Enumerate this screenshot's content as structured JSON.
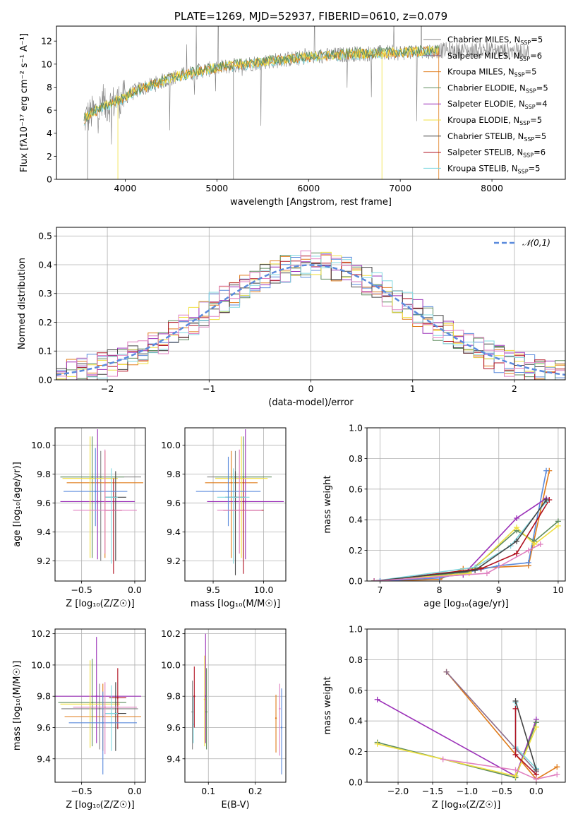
{
  "colors": {
    "Chabrier MILES": "#808080",
    "Salpeter MILES": "#8c6d8c",
    "Kroupa MILES": "#e07b1a",
    "Chabrier ELODIE": "#5e8c5e",
    "Salpeter ELODIE": "#9b30b8",
    "Kroupa ELODIE": "#f0e040",
    "Chabrier STELIB": "#444444",
    "Salpeter STELIB": "#b01020",
    "Kroupa STELIB": "#80d8e0",
    "extra_blue": "#5a8adc",
    "extra_pink": "#e080c0",
    "extra_green": "#60b060",
    "extra_lime": "#c8e860",
    "gauss": "#5a8adc"
  },
  "chart_data": [
    {
      "id": "spectrum",
      "type": "line",
      "title": "PLATE=1269, MJD=52937, FIBERID=0610, z=0.079",
      "xlabel": "wavelength [Angstrom, rest frame]",
      "ylabel": "Flux [fλ10⁻¹⁷ erg cm⁻² s⁻¹ A⁻¹]",
      "xlim": [
        3250,
        8800
      ],
      "ylim": [
        0,
        13.3
      ],
      "xticks": [
        "4000",
        "5000",
        "6000",
        "7000",
        "8000"
      ],
      "yticks": [
        "0",
        "2",
        "4",
        "6",
        "8",
        "10",
        "12"
      ],
      "grid": false,
      "legend_position": "upper-right",
      "legend": [
        {
          "name": "Chabrier MILES",
          "nssp": "5"
        },
        {
          "name": "Salpeter MILES",
          "nssp": "6"
        },
        {
          "name": "Kroupa MILES",
          "nssp": "5"
        },
        {
          "name": "Chabrier ELODIE",
          "nssp": "5"
        },
        {
          "name": "Salpeter ELODIE",
          "nssp": "4"
        },
        {
          "name": "Kroupa ELODIE",
          "nssp": "5"
        },
        {
          "name": "Chabrier STELIB",
          "nssp": "5"
        },
        {
          "name": "Salpeter STELIB",
          "nssp": "6"
        },
        {
          "name": "Kroupa STELIB",
          "nssp": "5"
        }
      ],
      "continuum": [
        [
          3550,
          5.2
        ],
        [
          3650,
          5.8
        ],
        [
          3750,
          6.2
        ],
        [
          3850,
          6.6
        ],
        [
          3950,
          6.9
        ],
        [
          4050,
          7.4
        ],
        [
          4150,
          7.8
        ],
        [
          4300,
          8.2
        ],
        [
          4500,
          8.8
        ],
        [
          4800,
          9.4
        ],
        [
          5100,
          9.8
        ],
        [
          5500,
          10.2
        ],
        [
          6000,
          10.6
        ],
        [
          6500,
          10.9
        ],
        [
          7000,
          11.0
        ],
        [
          7500,
          11.2
        ],
        [
          8000,
          11.2
        ],
        [
          8400,
          11.1
        ]
      ],
      "series_ranges": {
        "data": [
          3550,
          8400
        ],
        "model": [
          3550,
          7420
        ]
      }
    },
    {
      "id": "residuals",
      "type": "bar",
      "xlabel": "(data-model)/error",
      "ylabel": "Normed distribution",
      "xlim": [
        -2.5,
        2.5
      ],
      "ylim": [
        0,
        0.53
      ],
      "xticks": [
        "−2",
        "−1",
        "0",
        "1",
        "2"
      ],
      "yticks": [
        "0.0",
        "0.1",
        "0.2",
        "0.3",
        "0.4",
        "0.5"
      ],
      "grid": true,
      "legend_position": "upper-right",
      "gauss_label": "𝒩(0,1)",
      "bin_width": 0.1
    },
    {
      "id": "age_vs_Z",
      "type": "scatter",
      "xlabel": "Z [log₁₀(Z/Z☉)]",
      "ylabel": "age  [log₁₀(age/yr)]",
      "xlim": [
        -0.75,
        0.1
      ],
      "ylim": [
        9.06,
        10.12
      ],
      "xticks": [
        "−0.5",
        "0.0"
      ],
      "yticks": [
        "9.2",
        "9.4",
        "9.6",
        "9.8",
        "10.0"
      ],
      "grid": true,
      "points": [
        {
          "x": -0.32,
          "y": 9.78,
          "xerr": 0.38,
          "yerr": [
            0.58,
            0.18
          ],
          "c": "Chabrier MILES"
        },
        {
          "x": -0.28,
          "y": 9.74,
          "xerr": 0.36,
          "yerr": [
            0.52,
            0.22
          ],
          "c": "Kroupa MILES"
        },
        {
          "x": -0.4,
          "y": 9.78,
          "xerr": 0.3,
          "yerr": [
            0.56,
            0.28
          ],
          "c": "Chabrier ELODIE"
        },
        {
          "x": -0.35,
          "y": 9.61,
          "xerr": 0.35,
          "yerr": [
            0.4,
            0.5
          ],
          "c": "Salpeter ELODIE"
        },
        {
          "x": -0.42,
          "y": 9.77,
          "xerr": 0.26,
          "yerr": [
            0.55,
            0.29
          ],
          "c": "Kroupa ELODIE"
        },
        {
          "x": -0.18,
          "y": 9.64,
          "xerr": 0.1,
          "yerr": [
            0.44,
            0.18
          ],
          "c": "Chabrier STELIB"
        },
        {
          "x": -0.2,
          "y": 9.55,
          "xerr": 0.08,
          "yerr": [
            0.44,
            0.22
          ],
          "c": "Salpeter STELIB"
        },
        {
          "x": -0.22,
          "y": 9.64,
          "xerr": 0.06,
          "yerr": [
            0.46,
            0.2
          ],
          "c": "Kroupa STELIB"
        },
        {
          "x": -0.37,
          "y": 9.68,
          "xerr": 0.3,
          "yerr": [
            0.24,
            0.3
          ],
          "c": "extra_blue"
        },
        {
          "x": -0.28,
          "y": 9.55,
          "xerr": 0.3,
          "yerr": [
            0.3,
            0.42
          ],
          "c": "extra_pink"
        }
      ]
    },
    {
      "id": "age_vs_mass",
      "type": "scatter",
      "xlabel": "mass [log₁₀(M/M☉)]",
      "xlim": [
        9.22,
        10.22
      ],
      "ylim": [
        9.06,
        10.12
      ],
      "xticks": [
        "9.5",
        "10.0"
      ],
      "yticks": [
        "9.2",
        "9.4",
        "9.6",
        "9.8",
        "10.0"
      ],
      "grid": true,
      "points": [
        {
          "x": 9.72,
          "y": 9.78,
          "xerr": 0.28,
          "yerr": [
            0.58,
            0.18
          ],
          "c": "Chabrier MILES"
        },
        {
          "x": 9.68,
          "y": 9.74,
          "xerr": 0.26,
          "yerr": [
            0.52,
            0.22
          ],
          "c": "Kroupa MILES"
        },
        {
          "x": 9.8,
          "y": 9.78,
          "xerr": 0.28,
          "yerr": [
            0.56,
            0.28
          ],
          "c": "Chabrier ELODIE"
        },
        {
          "x": 9.82,
          "y": 9.61,
          "xerr": 0.38,
          "yerr": [
            0.4,
            0.5
          ],
          "c": "Salpeter ELODIE"
        },
        {
          "x": 9.78,
          "y": 9.77,
          "xerr": 0.26,
          "yerr": [
            0.55,
            0.29
          ],
          "c": "Kroupa ELODIE"
        },
        {
          "x": 9.72,
          "y": 9.64,
          "xerr": 0.1,
          "yerr": [
            0.54,
            0.18
          ],
          "c": "Chabrier STELIB"
        },
        {
          "x": 9.8,
          "y": 9.55,
          "xerr": 0.2,
          "yerr": [
            0.44,
            0.22
          ],
          "c": "Salpeter STELIB"
        },
        {
          "x": 9.7,
          "y": 9.64,
          "xerr": 0.16,
          "yerr": [
            0.46,
            0.2
          ],
          "c": "Kroupa STELIB"
        },
        {
          "x": 9.65,
          "y": 9.68,
          "xerr": 0.32,
          "yerr": [
            0.24,
            0.24
          ],
          "c": "extra_blue"
        },
        {
          "x": 9.76,
          "y": 9.55,
          "xerr": 0.22,
          "yerr": [
            0.3,
            0.42
          ],
          "c": "extra_pink"
        }
      ]
    },
    {
      "id": "mass_weight_vs_age",
      "type": "line",
      "xlabel": "age  [log₁₀(age/yr)]",
      "ylabel": "mass weight",
      "xlim": [
        6.78,
        10.12
      ],
      "ylim": [
        0,
        1.0
      ],
      "xticks": [
        "7",
        "8",
        "9",
        "10"
      ],
      "yticks": [
        "0.0",
        "0.2",
        "0.4",
        "0.6",
        "0.8",
        "1.0"
      ],
      "grid": true,
      "series": [
        {
          "c": "Kroupa MILES",
          "x": [
            6.9,
            8.0,
            8.4,
            9.5,
            9.85
          ],
          "y": [
            0.0,
            0.01,
            0.08,
            0.1,
            0.72
          ]
        },
        {
          "c": "extra_blue",
          "x": [
            7.0,
            8.0,
            9.0,
            9.5,
            9.8
          ],
          "y": [
            0.0,
            0.02,
            0.1,
            0.12,
            0.72
          ]
        },
        {
          "c": "Salpeter ELODIE",
          "x": [
            6.9,
            8.4,
            9.3,
            9.8
          ],
          "y": [
            0.0,
            0.04,
            0.41,
            0.54
          ]
        },
        {
          "c": "Chabrier ELODIE",
          "x": [
            6.9,
            8.5,
            9.3,
            9.6,
            10.0
          ],
          "y": [
            0.0,
            0.06,
            0.33,
            0.26,
            0.39
          ]
        },
        {
          "c": "Kroupa ELODIE",
          "x": [
            6.9,
            8.5,
            9.3,
            9.6,
            10.0
          ],
          "y": [
            0.0,
            0.05,
            0.35,
            0.24,
            0.36
          ]
        },
        {
          "c": "Salpeter STELIB",
          "x": [
            6.9,
            8.7,
            9.3,
            9.85
          ],
          "y": [
            0.0,
            0.08,
            0.18,
            0.53
          ]
        },
        {
          "c": "Kroupa STELIB",
          "x": [
            6.9,
            8.6,
            9.2,
            9.8
          ],
          "y": [
            0.0,
            0.09,
            0.23,
            0.52
          ]
        },
        {
          "c": "Chabrier STELIB",
          "x": [
            6.9,
            8.6,
            9.3,
            9.8
          ],
          "y": [
            0.0,
            0.07,
            0.26,
            0.53
          ]
        },
        {
          "c": "extra_pink",
          "x": [
            6.9,
            8.8,
            9.5,
            9.7
          ],
          "y": [
            0.0,
            0.05,
            0.2,
            0.24
          ]
        }
      ]
    },
    {
      "id": "mass_vs_Z",
      "type": "scatter",
      "xlabel": "Z [log₁₀(Z/Z☉)]",
      "ylabel": "mass [log₁₀(M/M☉)]",
      "xlim": [
        -0.75,
        0.1
      ],
      "ylim": [
        9.25,
        10.23
      ],
      "xticks": [
        "−0.5",
        "0.0"
      ],
      "yticks": [
        "9.4",
        "9.6",
        "9.8",
        "10.0",
        "10.2"
      ],
      "grid": true,
      "points": [
        {
          "x": -0.33,
          "y": 9.72,
          "xerr": 0.36,
          "yerr": [
            0.26,
            0.16
          ],
          "c": "Chabrier MILES"
        },
        {
          "x": -0.3,
          "y": 9.67,
          "xerr": 0.36,
          "yerr": [
            0.22,
            0.21
          ],
          "c": "Kroupa MILES"
        },
        {
          "x": -0.4,
          "y": 9.76,
          "xerr": 0.32,
          "yerr": [
            0.28,
            0.28
          ],
          "c": "Chabrier ELODIE"
        },
        {
          "x": -0.36,
          "y": 9.8,
          "xerr": 0.42,
          "yerr": [
            0.3,
            0.38
          ],
          "c": "Salpeter ELODIE"
        },
        {
          "x": -0.42,
          "y": 9.75,
          "xerr": 0.28,
          "yerr": [
            0.28,
            0.28
          ],
          "c": "Kroupa ELODIE"
        },
        {
          "x": -0.18,
          "y": 9.69,
          "xerr": 0.1,
          "yerr": [
            0.24,
            0.2
          ],
          "c": "Chabrier STELIB"
        },
        {
          "x": -0.16,
          "y": 9.79,
          "xerr": 0.08,
          "yerr": [
            0.2,
            0.19
          ],
          "c": "Salpeter STELIB"
        },
        {
          "x": -0.22,
          "y": 9.69,
          "xerr": 0.06,
          "yerr": [
            0.24,
            0.18
          ],
          "c": "Kroupa STELIB"
        },
        {
          "x": -0.3,
          "y": 9.63,
          "xerr": 0.32,
          "yerr": [
            0.33,
            0.2
          ],
          "c": "extra_blue"
        },
        {
          "x": -0.28,
          "y": 9.73,
          "xerr": 0.3,
          "yerr": [
            0.3,
            0.16
          ],
          "c": "extra_pink"
        }
      ]
    },
    {
      "id": "mass_vs_ebv",
      "type": "scatter",
      "xlabel": "E(B-V)",
      "xlim": [
        0.05,
        0.265
      ],
      "ylim": [
        9.25,
        10.23
      ],
      "xticks": [
        "0.1",
        "0.2"
      ],
      "yticks": [
        "9.4",
        "9.6",
        "9.8",
        "10.0",
        "10.2"
      ],
      "grid": true,
      "points": [
        {
          "x": 0.066,
          "y": 9.7,
          "c": "Chabrier MILES",
          "yerr": [
            0.24,
            0.2
          ]
        },
        {
          "x": 0.068,
          "y": 9.62,
          "c": "Kroupa STELIB",
          "yerr": [
            0.12,
            0.18
          ]
        },
        {
          "x": 0.07,
          "y": 9.8,
          "c": "Salpeter STELIB",
          "yerr": [
            0.2,
            0.19
          ]
        },
        {
          "x": 0.092,
          "y": 9.78,
          "c": "Kroupa ELODIE",
          "yerr": [
            0.3,
            0.28
          ]
        },
        {
          "x": 0.094,
          "y": 9.8,
          "c": "Salpeter ELODIE",
          "yerr": [
            0.3,
            0.4
          ]
        },
        {
          "x": 0.096,
          "y": 9.7,
          "c": "Chabrier ELODIE",
          "yerr": [
            0.24,
            0.28
          ]
        },
        {
          "x": 0.244,
          "y": 9.66,
          "c": "Kroupa MILES",
          "yerr": [
            0.22,
            0.15
          ]
        },
        {
          "x": 0.252,
          "y": 9.72,
          "c": "extra_pink",
          "yerr": [
            0.3,
            0.16
          ]
        },
        {
          "x": 0.256,
          "y": 9.6,
          "c": "extra_blue",
          "yerr": [
            0.3,
            0.25
          ]
        }
      ]
    },
    {
      "id": "mass_weight_vs_Z",
      "type": "line",
      "xlabel": "Z [log₁₀(Z/Z☉)]",
      "ylabel": "mass weight",
      "xlim": [
        -2.45,
        0.42
      ],
      "ylim": [
        0,
        1.0
      ],
      "xticks": [
        "−2.0",
        "−1.5",
        "−1.0",
        "−0.5",
        "0.0"
      ],
      "yticks": [
        "0.0",
        "0.2",
        "0.4",
        "0.6",
        "0.8",
        "1.0"
      ],
      "grid": true,
      "series": [
        {
          "c": "Kroupa MILES",
          "x": [
            -1.3,
            0.0,
            0.3
          ],
          "y": [
            0.72,
            0.02,
            0.1
          ]
        },
        {
          "c": "Salpeter MILES",
          "x": [
            -1.3,
            -0.3,
            0.0
          ],
          "y": [
            0.72,
            0.22,
            0.07
          ]
        },
        {
          "c": "Salpeter ELODIE",
          "x": [
            -2.3,
            -0.3,
            0.0
          ],
          "y": [
            0.54,
            0.04,
            0.41
          ]
        },
        {
          "c": "Chabrier ELODIE",
          "x": [
            -2.3,
            -0.3,
            0.0
          ],
          "y": [
            0.26,
            0.03,
            0.39
          ]
        },
        {
          "c": "Kroupa ELODIE",
          "x": [
            -2.3,
            -0.3,
            0.0
          ],
          "y": [
            0.25,
            0.04,
            0.36
          ]
        },
        {
          "c": "Kroupa STELIB",
          "x": [
            -0.3,
            -0.3,
            0.0
          ],
          "y": [
            0.52,
            0.23,
            0.09
          ]
        },
        {
          "c": "Chabrier STELIB",
          "x": [
            -0.3,
            0.0
          ],
          "y": [
            0.53,
            0.08
          ]
        },
        {
          "c": "Salpeter STELIB",
          "x": [
            -0.3,
            -0.3,
            0.0
          ],
          "y": [
            0.48,
            0.18,
            0.05
          ]
        },
        {
          "c": "extra_pink",
          "x": [
            -1.35,
            -0.3,
            0.0,
            0.3
          ],
          "y": [
            0.15,
            0.08,
            0.02,
            0.05
          ]
        }
      ]
    }
  ]
}
